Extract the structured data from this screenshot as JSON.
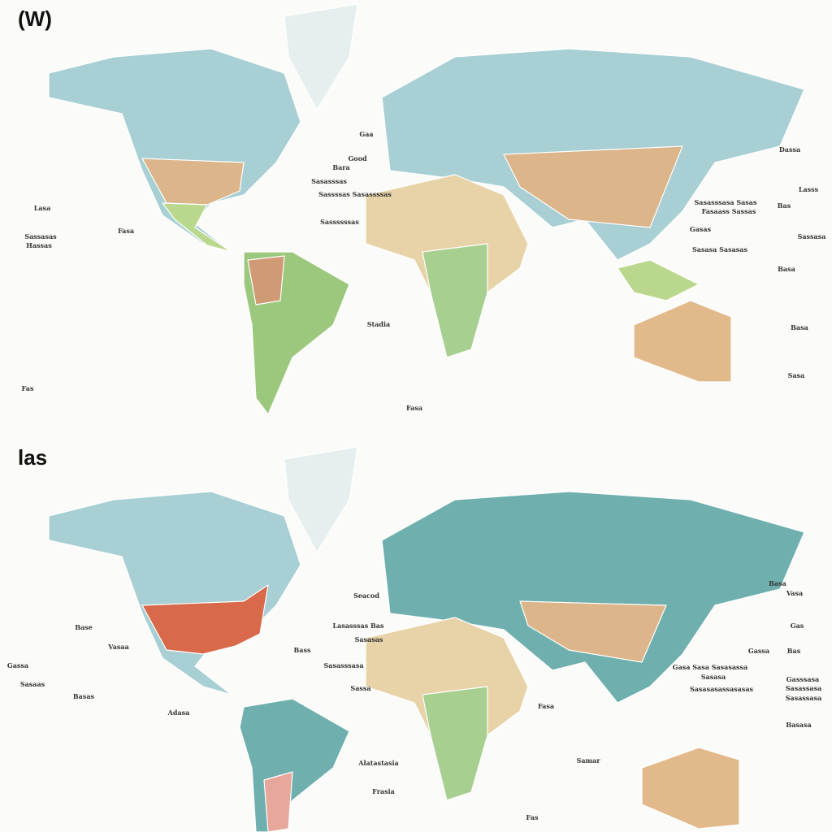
{
  "panels": [
    {
      "heading": "(W)",
      "labels": [
        "Gaa",
        "Good",
        "Bara",
        "Sasasssas",
        "Sassssas Sasassssas",
        "Sassssssas",
        "Lasa",
        "Sassasas",
        "Hassas",
        "Fasa",
        "Dassa",
        "Lasss",
        "Sasasssasa Sasas",
        "Fasaass Sassas",
        "Bas",
        "Gasas",
        "Sasasa Sasasas",
        "Sassasa",
        "Basa",
        "Stadia",
        "Fasa",
        "Basa",
        "Sasa",
        "Fas"
      ]
    },
    {
      "heading": "las",
      "labels": [
        "Seacod",
        "Lasasssas Bas",
        "Sasasas",
        "Bass",
        "Sasasssasa",
        "Sassa",
        "Base",
        "Vasaa",
        "Gassa",
        "Sasaas",
        "Basas",
        "Adasa",
        "Alatastasia",
        "Frasia",
        "Samar",
        "Fasa",
        "Basa",
        "Vasa",
        "Gas",
        "Gassa",
        "Bas",
        "Gasa Sasa Sasasassa",
        "Sasasa",
        "Sasasasassasasas",
        "Gasssasa",
        "Sasassasa",
        "Sasassasa",
        "Basasa",
        "Fas"
      ]
    }
  ]
}
